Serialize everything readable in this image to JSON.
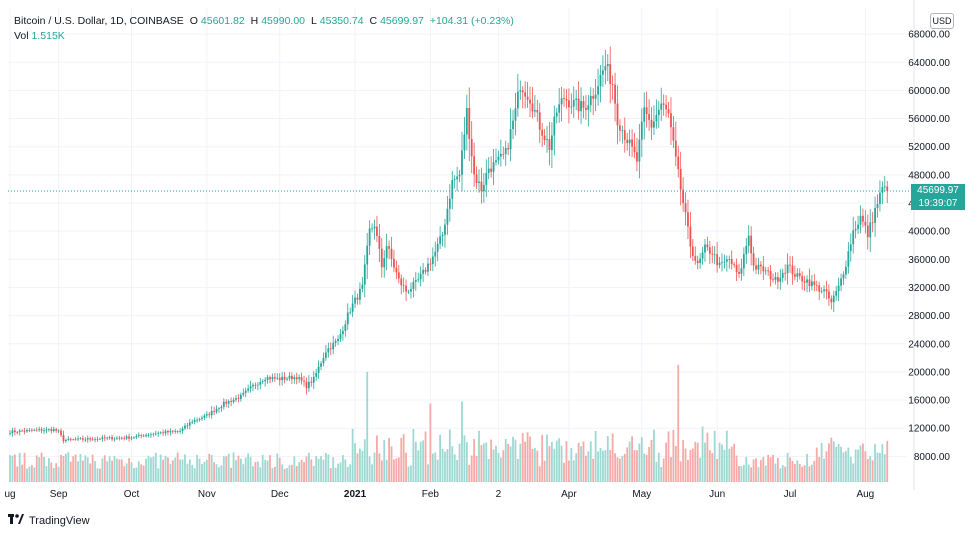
{
  "header": {
    "symbol": "Bitcoin / U.S. Dollar, 1D, COINBASE",
    "o_label": "O",
    "o_value": "45601.82",
    "h_label": "H",
    "h_value": "45990.00",
    "l_label": "L",
    "l_value": "45350.74",
    "c_label": "C",
    "c_value": "45699.97",
    "change": "+104.31 (+0.23%)"
  },
  "volume_label": {
    "label": "Vol",
    "value": "1.515K"
  },
  "currency_button": "USD",
  "last_price": {
    "price": "45699.97",
    "countdown": "19:39:07"
  },
  "brand": "TradingView",
  "colors": {
    "up": "#26a69a",
    "down": "#ef5350",
    "up_vol": "#9fd8d2",
    "down_vol": "#f6a9a6",
    "grid": "#f0f3fa",
    "text": "#131722"
  },
  "chart_data": {
    "type": "candlestick",
    "title": "Bitcoin / U.S. Dollar, 1D, COINBASE",
    "y_ticks": [
      8000,
      12000,
      16000,
      20000,
      24000,
      28000,
      32000,
      36000,
      40000,
      44000,
      48000,
      52000,
      56000,
      60000,
      64000,
      68000
    ],
    "y_tick_labels": [
      "8000.00",
      "12000.00",
      "16000.00",
      "20000.00",
      "24000.00",
      "28000.00",
      "32000.00",
      "36000.00",
      "40000.00",
      "44000.00",
      "48000.00",
      "52000.00",
      "56000.00",
      "60000.00",
      "64000.00",
      "68000.00"
    ],
    "ylim": [
      4000,
      71000
    ],
    "x_ticks": [
      {
        "day": 0,
        "label": "ug"
      },
      {
        "day": 20,
        "label": "Sep"
      },
      {
        "day": 50,
        "label": "Oct"
      },
      {
        "day": 81,
        "label": "Nov"
      },
      {
        "day": 111,
        "label": "Dec"
      },
      {
        "day": 142,
        "label": "2021",
        "bold": true
      },
      {
        "day": 173,
        "label": "Feb"
      },
      {
        "day": 201,
        "label": "2"
      },
      {
        "day": 230,
        "label": "Apr"
      },
      {
        "day": 260,
        "label": "May"
      },
      {
        "day": 291,
        "label": "Jun"
      },
      {
        "day": 321,
        "label": "Jul"
      },
      {
        "day": 352,
        "label": "Aug"
      }
    ],
    "total_days": 361,
    "last_close": 45699.97,
    "close_anchors": [
      [
        0,
        11500
      ],
      [
        10,
        11700
      ],
      [
        18,
        11800
      ],
      [
        20,
        11500
      ],
      [
        22,
        10300
      ],
      [
        35,
        10500
      ],
      [
        50,
        10700
      ],
      [
        60,
        11300
      ],
      [
        70,
        11600
      ],
      [
        75,
        13000
      ],
      [
        81,
        13800
      ],
      [
        88,
        15500
      ],
      [
        95,
        16500
      ],
      [
        100,
        18000
      ],
      [
        105,
        19200
      ],
      [
        111,
        19000
      ],
      [
        118,
        19300
      ],
      [
        122,
        18000
      ],
      [
        125,
        19000
      ],
      [
        130,
        23000
      ],
      [
        135,
        24500
      ],
      [
        140,
        28900
      ],
      [
        145,
        32000
      ],
      [
        148,
        40000
      ],
      [
        150,
        41000
      ],
      [
        153,
        35000
      ],
      [
        155,
        38000
      ],
      [
        160,
        33000
      ],
      [
        163,
        31500
      ],
      [
        167,
        32500
      ],
      [
        170,
        34000
      ],
      [
        175,
        37000
      ],
      [
        178,
        39500
      ],
      [
        182,
        47000
      ],
      [
        185,
        48000
      ],
      [
        188,
        57000
      ],
      [
        191,
        48000
      ],
      [
        194,
        46000
      ],
      [
        197,
        49000
      ],
      [
        200,
        49500
      ],
      [
        204,
        51000
      ],
      [
        208,
        57000
      ],
      [
        210,
        61000
      ],
      [
        214,
        59000
      ],
      [
        218,
        55000
      ],
      [
        222,
        52000
      ],
      [
        225,
        57000
      ],
      [
        228,
        59000
      ],
      [
        232,
        58000
      ],
      [
        236,
        57500
      ],
      [
        240,
        59500
      ],
      [
        245,
        63500
      ],
      [
        248,
        61000
      ],
      [
        250,
        56000
      ],
      [
        254,
        53000
      ],
      [
        258,
        50000
      ],
      [
        261,
        57000
      ],
      [
        264,
        55000
      ],
      [
        268,
        58000
      ],
      [
        271,
        56500
      ],
      [
        274,
        50000
      ],
      [
        277,
        44000
      ],
      [
        280,
        38000
      ],
      [
        283,
        35000
      ],
      [
        286,
        37500
      ],
      [
        289,
        37000
      ],
      [
        292,
        35000
      ],
      [
        296,
        36000
      ],
      [
        300,
        33500
      ],
      [
        304,
        39500
      ],
      [
        306,
        35000
      ],
      [
        310,
        34500
      ],
      [
        315,
        33000
      ],
      [
        320,
        35000
      ],
      [
        324,
        33500
      ],
      [
        328,
        33000
      ],
      [
        332,
        32000
      ],
      [
        335,
        31500
      ],
      [
        338,
        29800
      ],
      [
        341,
        32000
      ],
      [
        344,
        35500
      ],
      [
        347,
        40000
      ],
      [
        350,
        42000
      ],
      [
        353,
        39500
      ],
      [
        356,
        43000
      ],
      [
        359,
        46000
      ],
      [
        361,
        45700
      ]
    ],
    "volume_spikes": [
      {
        "day": 147,
        "value": 20000
      },
      {
        "day": 173,
        "value": 15500
      },
      {
        "day": 186,
        "value": 15800
      },
      {
        "day": 275,
        "value": 21000
      }
    ]
  }
}
